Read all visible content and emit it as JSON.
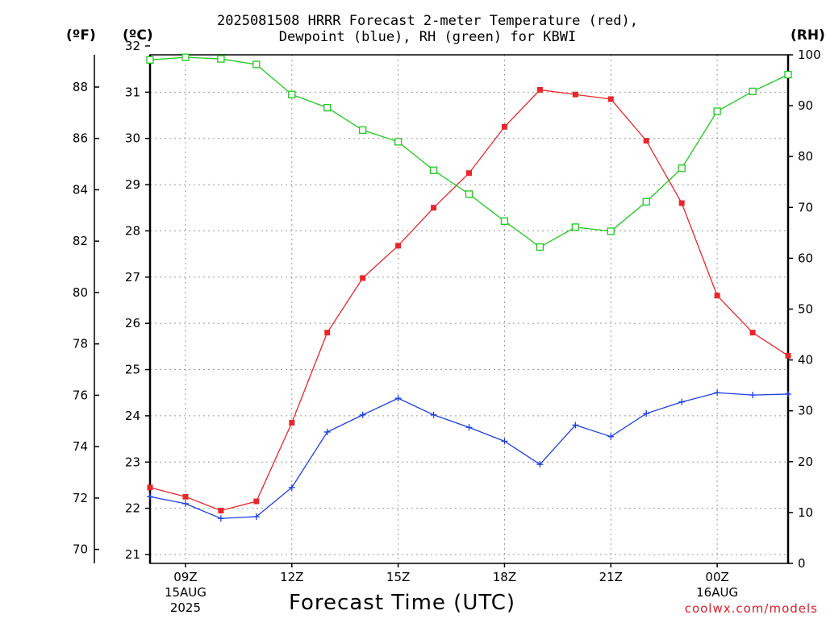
{
  "title_line1": "2025081508 HRRR Forecast 2-meter Temperature (red),",
  "title_line2": "Dewpoint (blue), RH (green) for KBWI",
  "unit_f": "(ºF)",
  "unit_c": "(ºC)",
  "unit_rh": "(RH)",
  "xlabel": "Forecast Time (UTC)",
  "credit": "coolwx.com/models",
  "chart_data": {
    "type": "line",
    "x_hours_utc": [
      "08Z",
      "09Z",
      "10Z",
      "11Z",
      "12Z",
      "13Z",
      "14Z",
      "15Z",
      "16Z",
      "17Z",
      "18Z",
      "19Z",
      "20Z",
      "21Z",
      "22Z",
      "23Z",
      "00Z",
      "01Z",
      "02Z"
    ],
    "x_tick_labels": [
      {
        "hour": "09Z",
        "line2": "15AUG",
        "line3": "2025"
      },
      {
        "hour": "12Z"
      },
      {
        "hour": "15Z"
      },
      {
        "hour": "18Z"
      },
      {
        "hour": "21Z"
      },
      {
        "hour": "00Z",
        "line2": "16AUG"
      }
    ],
    "yaxis_celsius": {
      "range": [
        21,
        32
      ],
      "ticks": [
        21,
        22,
        23,
        24,
        25,
        26,
        27,
        28,
        29,
        30,
        31,
        32
      ]
    },
    "yaxis_fahrenheit": {
      "ticks": [
        70,
        72,
        74,
        76,
        78,
        80,
        82,
        84,
        86,
        88
      ]
    },
    "yaxis_rh": {
      "range": [
        0,
        100
      ],
      "ticks": [
        0,
        10,
        20,
        30,
        40,
        50,
        60,
        70,
        80,
        90,
        100
      ]
    },
    "grid": true,
    "series": [
      {
        "name": "Temperature",
        "axis": "celsius",
        "color": "#e8262b",
        "marker": "filled-square",
        "values": [
          22.45,
          22.25,
          21.95,
          22.15,
          23.85,
          25.8,
          26.98,
          27.68,
          28.5,
          29.25,
          30.25,
          31.05,
          30.95,
          30.85,
          29.95,
          28.6,
          26.6,
          25.8,
          25.3
        ]
      },
      {
        "name": "Dewpoint",
        "axis": "celsius",
        "color": "#1f3fe0",
        "marker": "plus",
        "values": [
          22.25,
          22.1,
          21.78,
          21.82,
          22.45,
          23.65,
          24.02,
          24.38,
          24.02,
          23.75,
          23.45,
          22.95,
          23.8,
          23.55,
          24.05,
          24.3,
          24.5,
          24.45,
          24.47
        ]
      },
      {
        "name": "RH",
        "axis": "rh",
        "color": "#1ec81e",
        "marker": "open-square",
        "values": [
          99,
          99.5,
          99.2,
          98.1,
          92.2,
          89.6,
          85.2,
          82.9,
          77.3,
          72.6,
          67.3,
          62.2,
          66.1,
          65.3,
          71.1,
          77.7,
          88.9,
          92.8,
          96.1
        ]
      }
    ]
  }
}
